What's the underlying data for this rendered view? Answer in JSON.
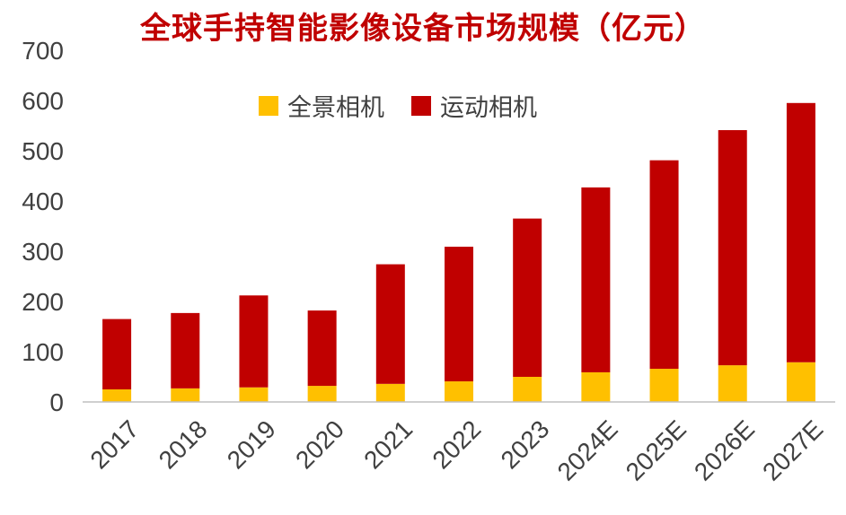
{
  "chart_data": {
    "type": "bar",
    "stacked": true,
    "title": "全球手持智能影像设备市场规模（亿元）",
    "categories": [
      "2017",
      "2018",
      "2019",
      "2020",
      "2021",
      "2022",
      "2023",
      "2024E",
      "2025E",
      "2026E",
      "2027E"
    ],
    "series": [
      {
        "name": "全景相机",
        "color": "#FFC000",
        "values": [
          25,
          27,
          29,
          32,
          36,
          41,
          50,
          59,
          66,
          73,
          79
        ]
      },
      {
        "name": "运动相机",
        "color": "#C00000",
        "values": [
          140,
          150,
          183,
          150,
          238,
          268,
          315,
          368,
          415,
          468,
          516
        ]
      }
    ],
    "ylim": [
      0,
      700
    ],
    "yticks": [
      "0",
      "100",
      "200",
      "300",
      "400",
      "500",
      "600",
      "700"
    ],
    "legend_position": "top-center",
    "grid": false
  }
}
